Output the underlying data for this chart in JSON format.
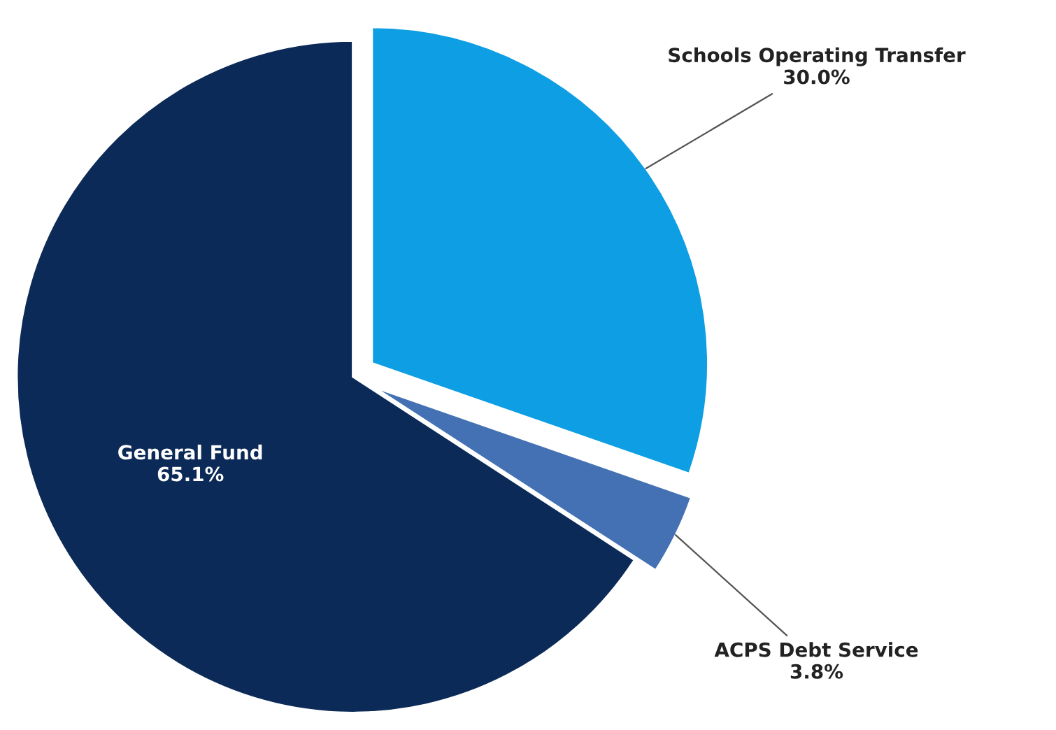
{
  "chart_data": {
    "type": "pie",
    "categories": [
      "Schools Operating Transfer",
      "ACPS Debt Service",
      "General Fund"
    ],
    "values": [
      30.0,
      3.8,
      65.1
    ],
    "value_labels": [
      "30.0%",
      "3.8%",
      "65.1%"
    ],
    "colors": [
      "#0d9ee3",
      "#4471b3",
      "#0b2a57"
    ],
    "legend": false
  }
}
